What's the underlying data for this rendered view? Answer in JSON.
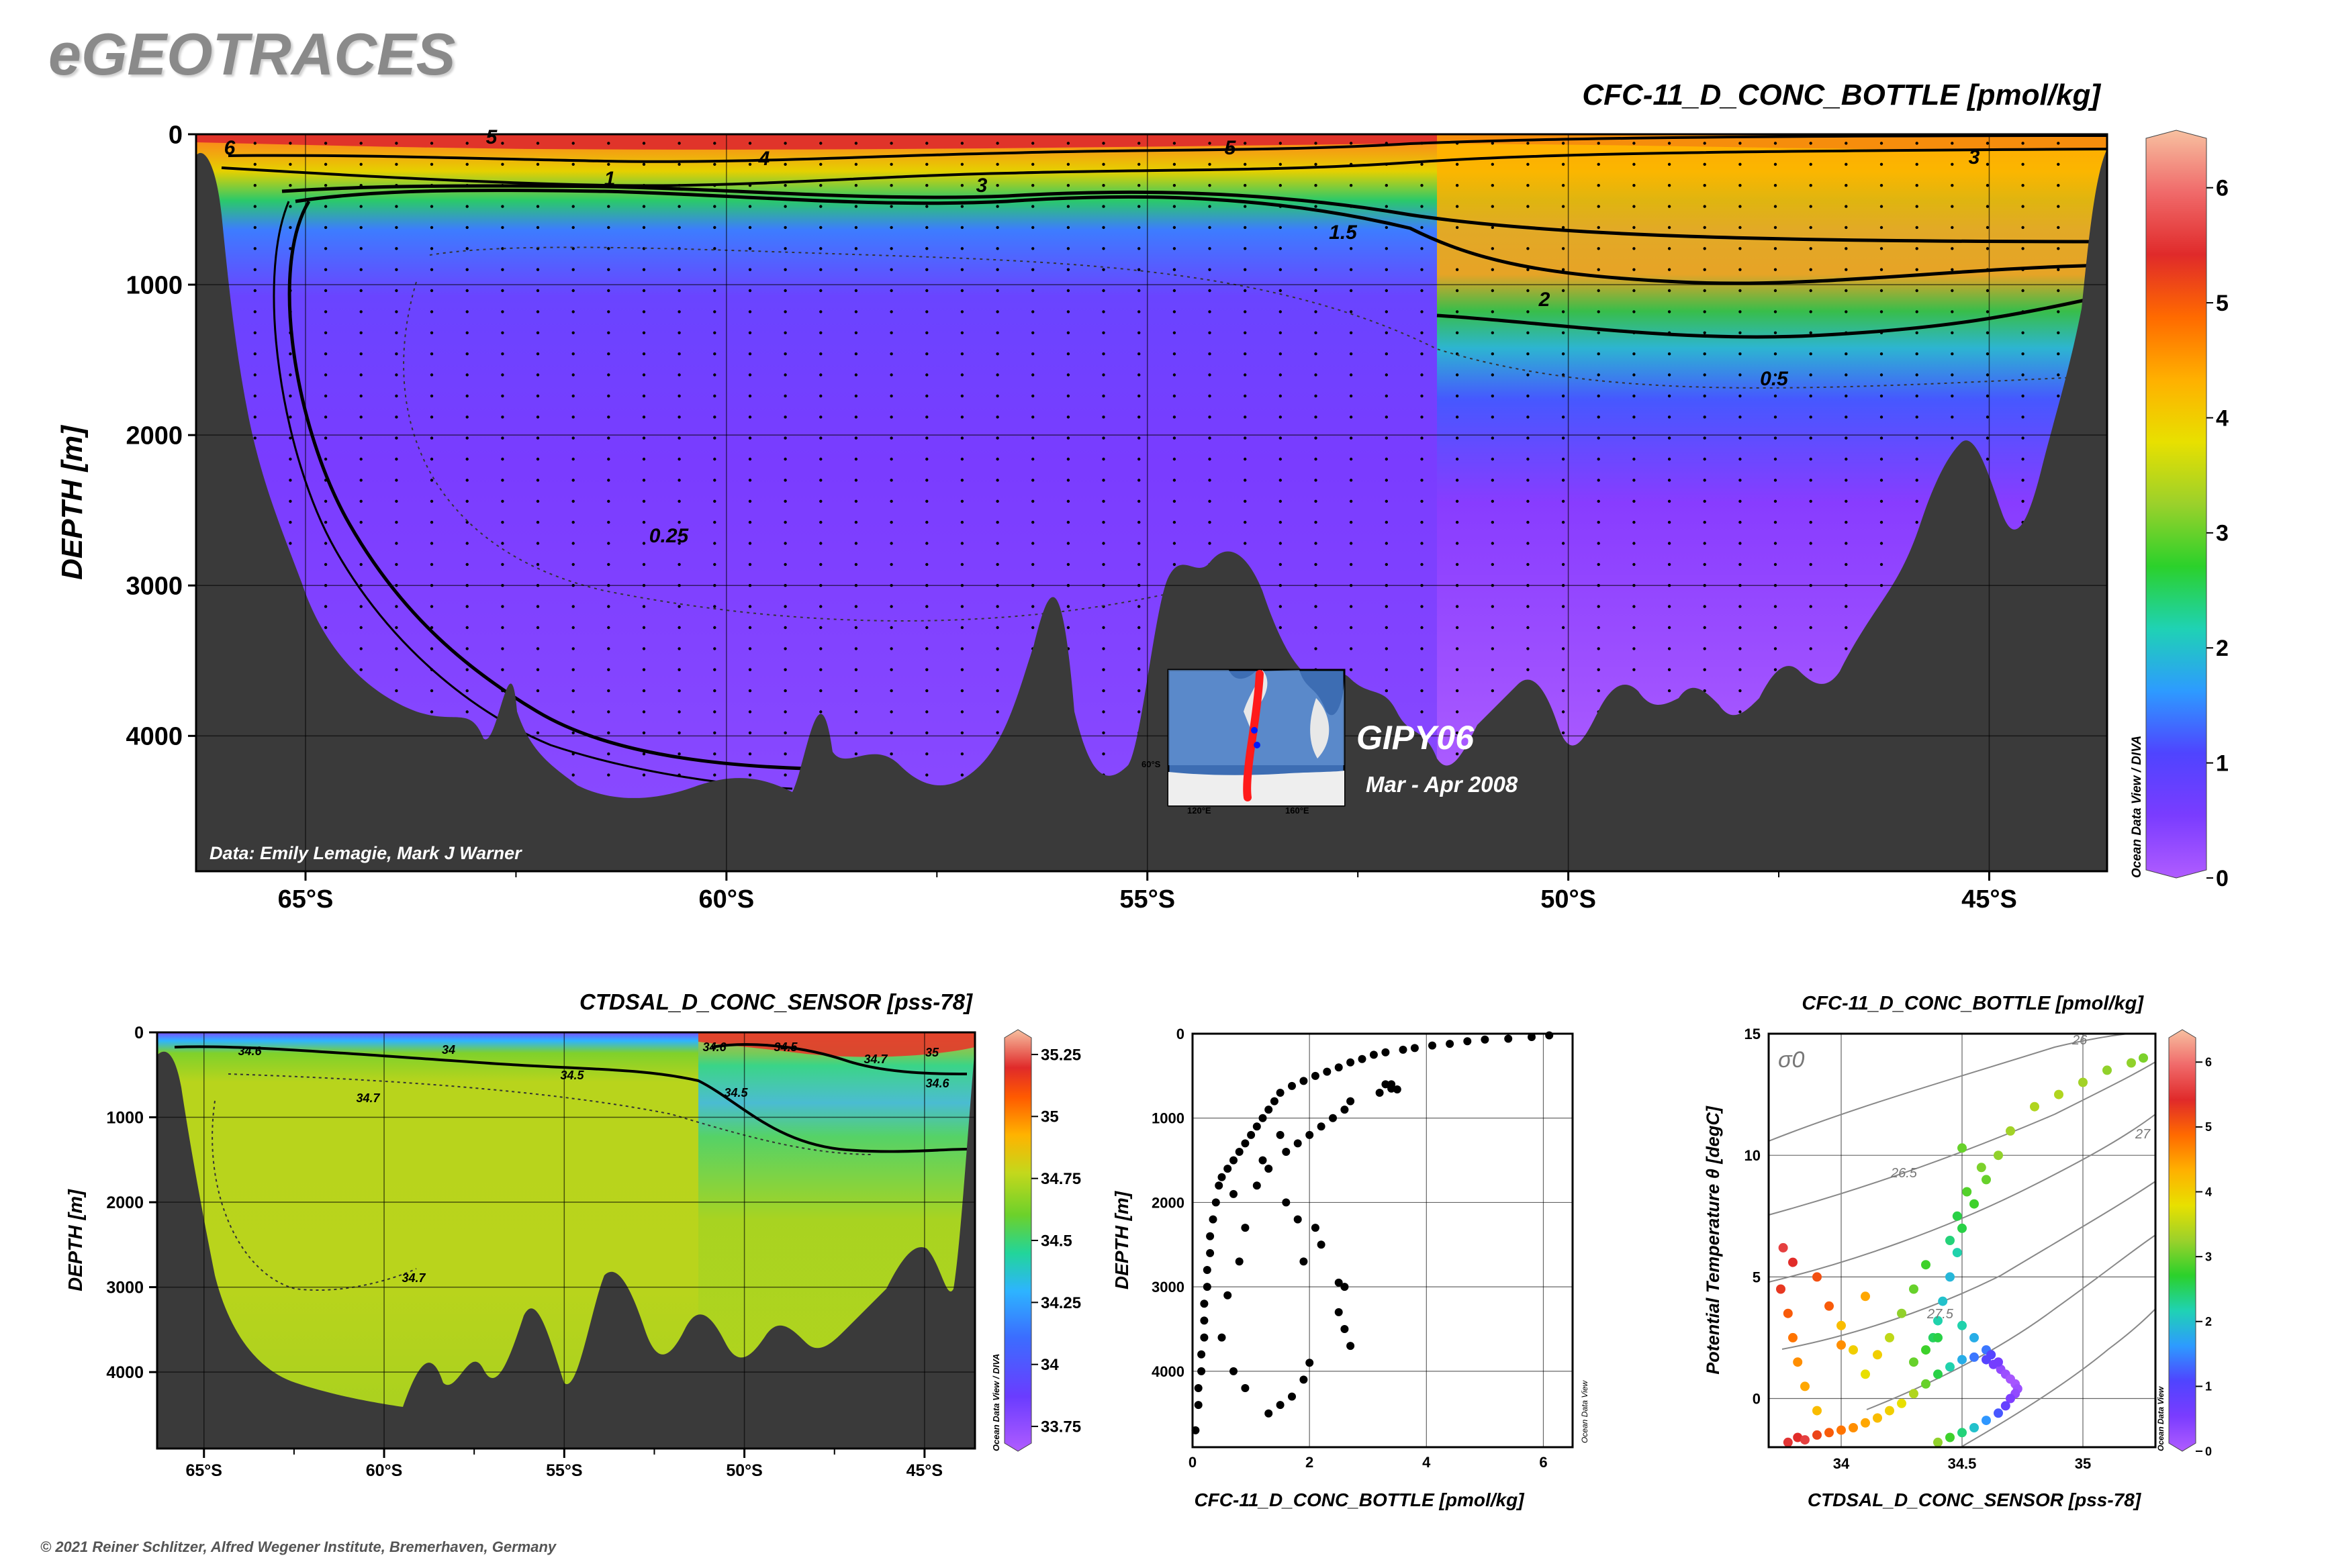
{
  "brand": "eGEOTRACES",
  "copyright": "© 2021 Reiner Schlitzer, Alfred Wegener Institute, Bremerhaven, Germany",
  "colors": {
    "land": "#3a3a3a",
    "contour": "#000000",
    "scale": [
      "#b05cff",
      "#7a3cff",
      "#4f44ff",
      "#2d9bff",
      "#1fd2b4",
      "#2bd12b",
      "#9bd12b",
      "#e8e000",
      "#ffb000",
      "#ff6a00",
      "#e02a2a",
      "#f06a6a",
      "#f7c0a0"
    ]
  },
  "chart_data": [
    {
      "type": "section",
      "id": "main",
      "title": "CFC-11_D_CONC_BOTTLE [pmol/kg]",
      "ylabel": "DEPTH [m]",
      "yticks": [
        "0",
        "1000",
        "2000",
        "3000",
        "4000"
      ],
      "ylim": [
        0,
        4900
      ],
      "xticks": [
        "65°S",
        "60°S",
        "55°S",
        "50°S",
        "45°S"
      ],
      "xlim": [
        66.3,
        43.6
      ],
      "contour_labels": [
        "6",
        "5",
        "4",
        "3",
        "5",
        "3",
        "1",
        "1.5",
        "2",
        "0.5",
        "0.25"
      ],
      "colorbar": {
        "ticks": [
          "0",
          "1",
          "2",
          "3",
          "4",
          "5",
          "6"
        ],
        "range": [
          0,
          6.5
        ],
        "caption": "Ocean Data View / DIVA"
      },
      "credit": "Data: Emily Lemagie, Mark J Warner",
      "inset": {
        "cruise": "GIPY06",
        "dates": "Mar - Apr 2008",
        "lon_labels": [
          "120°E",
          "160°E"
        ],
        "lat_label": "60°S"
      }
    },
    {
      "type": "section",
      "id": "salinity",
      "title": "CTDSAL_D_CONC_SENSOR [pss-78]",
      "ylabel": "DEPTH [m]",
      "yticks": [
        "0",
        "1000",
        "2000",
        "3000",
        "4000"
      ],
      "ylim": [
        0,
        4900
      ],
      "xticks": [
        "65°S",
        "60°S",
        "55°S",
        "50°S",
        "45°S"
      ],
      "xlim": [
        66.3,
        43.6
      ],
      "contour_labels": [
        "34.6",
        "34",
        "34.5",
        "34.7",
        "34.6",
        "34.5",
        "34.5",
        "34.7",
        "35",
        "34.6",
        "34.7"
      ],
      "colorbar": {
        "ticks": [
          "33.75",
          "34",
          "34.25",
          "34.5",
          "34.75",
          "35",
          "35.25"
        ],
        "range": [
          33.65,
          35.35
        ],
        "caption": "Ocean Data View / DIVA"
      }
    },
    {
      "type": "scatter",
      "id": "profile",
      "xlabel": "CFC-11_D_CONC_BOTTLE [pmol/kg]",
      "ylabel": "DEPTH [m]",
      "xticks": [
        "0",
        "2",
        "4",
        "6"
      ],
      "yticks": [
        "0",
        "1000",
        "2000",
        "3000",
        "4000"
      ],
      "xlim": [
        0,
        6.5
      ],
      "ylim": [
        0,
        4900
      ],
      "caption": "Ocean Data View",
      "points": [
        [
          6.1,
          20
        ],
        [
          5.8,
          40
        ],
        [
          5.4,
          60
        ],
        [
          5.0,
          70
        ],
        [
          4.7,
          90
        ],
        [
          4.4,
          120
        ],
        [
          4.1,
          140
        ],
        [
          3.8,
          170
        ],
        [
          3.6,
          190
        ],
        [
          3.3,
          220
        ],
        [
          3.1,
          250
        ],
        [
          2.9,
          300
        ],
        [
          2.7,
          340
        ],
        [
          2.5,
          400
        ],
        [
          2.3,
          450
        ],
        [
          2.1,
          500
        ],
        [
          1.9,
          560
        ],
        [
          1.7,
          620
        ],
        [
          1.5,
          700
        ],
        [
          1.4,
          800
        ],
        [
          1.3,
          900
        ],
        [
          1.2,
          1000
        ],
        [
          1.1,
          1100
        ],
        [
          1.0,
          1200
        ],
        [
          0.9,
          1300
        ],
        [
          0.8,
          1400
        ],
        [
          0.7,
          1500
        ],
        [
          0.6,
          1600
        ],
        [
          0.5,
          1700
        ],
        [
          0.45,
          1800
        ],
        [
          0.4,
          2000
        ],
        [
          0.35,
          2200
        ],
        [
          0.3,
          2400
        ],
        [
          0.3,
          2600
        ],
        [
          0.25,
          2800
        ],
        [
          0.25,
          3000
        ],
        [
          0.2,
          3200
        ],
        [
          0.2,
          3400
        ],
        [
          0.2,
          3600
        ],
        [
          0.15,
          3800
        ],
        [
          0.15,
          4000
        ],
        [
          0.1,
          4200
        ],
        [
          0.1,
          4400
        ],
        [
          0.05,
          4700
        ],
        [
          3.3,
          600
        ],
        [
          3.4,
          650
        ],
        [
          3.2,
          700
        ],
        [
          2.7,
          800
        ],
        [
          2.6,
          900
        ],
        [
          2.4,
          1000
        ],
        [
          2.2,
          1100
        ],
        [
          2.0,
          1200
        ],
        [
          1.8,
          1300
        ],
        [
          1.6,
          1400
        ],
        [
          1.3,
          1600
        ],
        [
          1.1,
          1800
        ],
        [
          1.6,
          2000
        ],
        [
          1.8,
          2200
        ],
        [
          2.1,
          2300
        ],
        [
          2.2,
          2500
        ],
        [
          1.9,
          2700
        ],
        [
          2.5,
          2950
        ],
        [
          2.6,
          3000
        ],
        [
          2.5,
          3300
        ],
        [
          2.6,
          3500
        ],
        [
          2.7,
          3700
        ],
        [
          2.0,
          3900
        ],
        [
          1.9,
          4100
        ],
        [
          1.7,
          4300
        ],
        [
          1.3,
          4500
        ],
        [
          1.5,
          4400
        ],
        [
          0.9,
          4200
        ],
        [
          0.7,
          4000
        ],
        [
          0.5,
          3600
        ],
        [
          0.6,
          3100
        ],
        [
          0.8,
          2700
        ],
        [
          0.9,
          2300
        ],
        [
          0.7,
          1900
        ],
        [
          1.2,
          1500
        ],
        [
          1.5,
          1200
        ],
        [
          3.4,
          600
        ],
        [
          3.5,
          660
        ]
      ]
    },
    {
      "type": "scatter",
      "id": "ts",
      "title": "CFC-11_D_CONC_BOTTLE [pmol/kg]",
      "xlabel": "CTDSAL_D_CONC_SENSOR [pss-78]",
      "ylabel": "Potential Temperature θ [degC]",
      "xticks": [
        "34",
        "34.5",
        "35"
      ],
      "yticks": [
        "0",
        "5",
        "10",
        "15"
      ],
      "xlim": [
        33.7,
        35.3
      ],
      "ylim": [
        -2,
        15
      ],
      "sigma_label": "σ0",
      "isopycnal_labels": [
        "26",
        "26.5",
        "27",
        "27.5"
      ],
      "colorbar": {
        "ticks": [
          "0",
          "1",
          "2",
          "3",
          "4",
          "5",
          "6"
        ],
        "range": [
          0,
          6.5
        ],
        "caption": "Ocean Data View"
      },
      "points": [
        [
          33.78,
          -1.8,
          5.5
        ],
        [
          33.82,
          -1.6,
          5.4
        ],
        [
          33.85,
          -1.7,
          5.6
        ],
        [
          33.9,
          -1.5,
          5.2
        ],
        [
          33.95,
          -1.4,
          5.0
        ],
        [
          34.0,
          -1.3,
          4.8
        ],
        [
          34.05,
          -1.2,
          4.6
        ],
        [
          34.1,
          -1.0,
          4.4
        ],
        [
          34.15,
          -0.8,
          4.2
        ],
        [
          34.2,
          -0.5,
          4.0
        ],
        [
          34.25,
          -0.2,
          3.8
        ],
        [
          34.3,
          0.2,
          3.4
        ],
        [
          34.35,
          0.6,
          3.0
        ],
        [
          34.4,
          1.0,
          2.6
        ],
        [
          34.45,
          1.3,
          2.2
        ],
        [
          34.5,
          1.6,
          1.8
        ],
        [
          34.55,
          1.7,
          1.4
        ],
        [
          34.6,
          1.6,
          1.0
        ],
        [
          34.63,
          1.4,
          0.6
        ],
        [
          34.66,
          1.2,
          0.3
        ],
        [
          34.68,
          1.0,
          0.2
        ],
        [
          34.7,
          0.8,
          0.1
        ],
        [
          34.72,
          0.6,
          0.1
        ],
        [
          34.73,
          0.4,
          0.2
        ],
        [
          34.72,
          0.2,
          0.3
        ],
        [
          34.7,
          0.0,
          0.5
        ],
        [
          34.68,
          -0.3,
          0.8
        ],
        [
          34.65,
          -0.6,
          1.2
        ],
        [
          34.6,
          -0.9,
          1.6
        ],
        [
          34.55,
          -1.2,
          2.0
        ],
        [
          34.5,
          -1.4,
          2.4
        ],
        [
          34.45,
          -1.6,
          2.8
        ],
        [
          34.4,
          -1.8,
          3.2
        ],
        [
          34.38,
          2.5,
          2.5
        ],
        [
          34.4,
          3.2,
          2.2
        ],
        [
          34.42,
          4.0,
          2.0
        ],
        [
          34.45,
          5.0,
          1.9
        ],
        [
          34.48,
          6.0,
          2.2
        ],
        [
          34.5,
          7.0,
          2.6
        ],
        [
          34.55,
          8.0,
          2.8
        ],
        [
          34.6,
          9.0,
          3.0
        ],
        [
          34.65,
          10.0,
          3.2
        ],
        [
          34.7,
          11.0,
          3.3
        ],
        [
          34.8,
          12.0,
          3.4
        ],
        [
          34.9,
          12.5,
          3.4
        ],
        [
          35.0,
          13.0,
          3.3
        ],
        [
          35.1,
          13.5,
          3.2
        ],
        [
          35.2,
          13.8,
          3.2
        ],
        [
          35.25,
          14.0,
          3.1
        ],
        [
          33.75,
          4.5,
          5.3
        ],
        [
          33.78,
          3.5,
          5.0
        ],
        [
          33.8,
          2.5,
          4.8
        ],
        [
          33.82,
          1.5,
          4.6
        ],
        [
          33.85,
          0.5,
          4.4
        ],
        [
          33.9,
          -0.5,
          4.2
        ],
        [
          34.0,
          3.0,
          4.2
        ],
        [
          34.05,
          2.0,
          4.0
        ],
        [
          34.1,
          1.0,
          3.8
        ],
        [
          34.2,
          2.5,
          3.5
        ],
        [
          34.25,
          3.5,
          3.2
        ],
        [
          34.3,
          4.5,
          3.0
        ],
        [
          34.35,
          5.5,
          2.8
        ],
        [
          34.3,
          1.5,
          3.0
        ],
        [
          34.35,
          2.0,
          2.8
        ],
        [
          34.4,
          2.5,
          2.6
        ],
        [
          34.5,
          3.0,
          2.2
        ],
        [
          34.55,
          2.5,
          1.8
        ],
        [
          34.6,
          2.0,
          1.4
        ],
        [
          34.62,
          1.8,
          1.0
        ],
        [
          34.65,
          1.5,
          0.6
        ],
        [
          33.76,
          6.2,
          5.6
        ],
        [
          33.8,
          5.6,
          5.4
        ],
        [
          33.9,
          5.0,
          5.1
        ],
        [
          33.95,
          3.8,
          5.0
        ],
        [
          34.0,
          2.2,
          4.6
        ],
        [
          34.1,
          4.2,
          4.4
        ],
        [
          34.15,
          1.8,
          4.0
        ],
        [
          34.45,
          6.5,
          2.4
        ],
        [
          34.48,
          7.5,
          2.6
        ],
        [
          34.52,
          8.5,
          2.9
        ],
        [
          34.58,
          9.5,
          3.1
        ],
        [
          34.5,
          10.3,
          3.0
        ]
      ]
    }
  ]
}
